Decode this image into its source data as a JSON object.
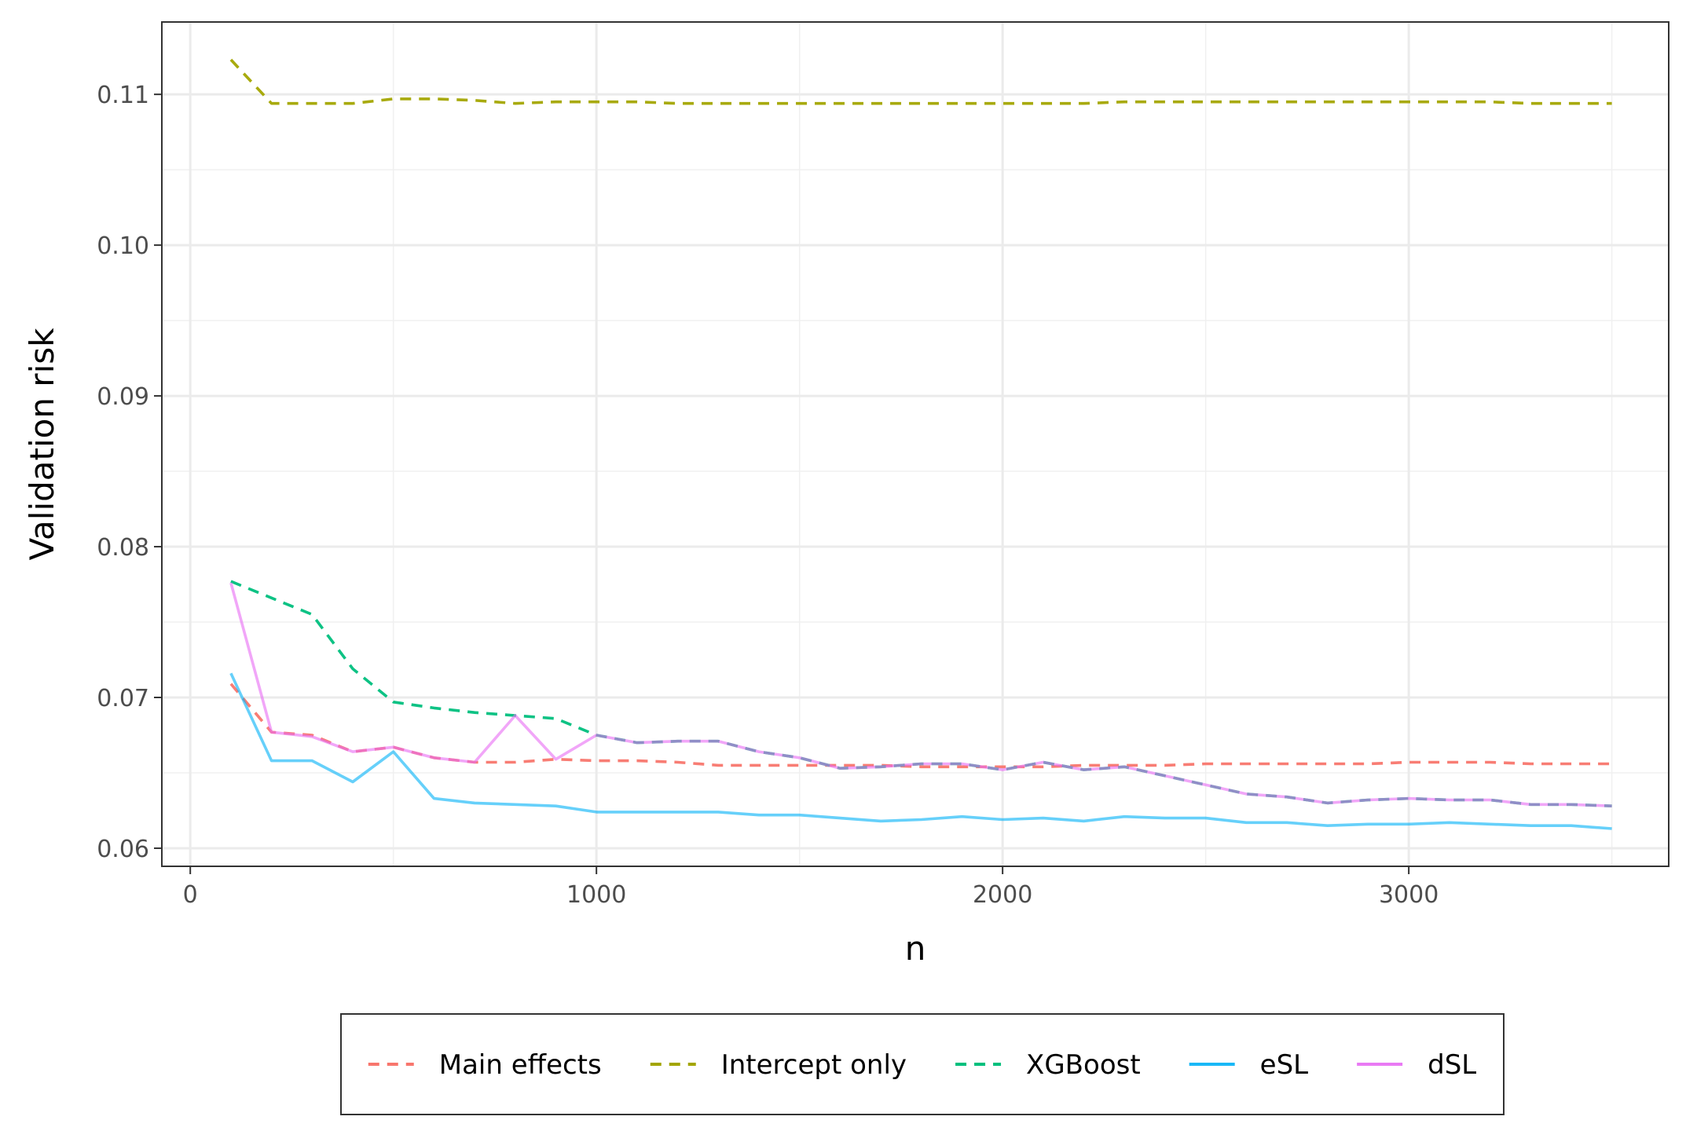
{
  "chart_data": {
    "type": "line",
    "title": "",
    "xlabel": "n",
    "ylabel": "Validation risk",
    "xlim": [
      -70,
      3640
    ],
    "ylim": [
      0.0588,
      0.1148
    ],
    "x_ticks": [
      0,
      1000,
      2000,
      3000
    ],
    "x_tick_labels": [
      "0",
      "1000",
      "2000",
      "3000"
    ],
    "y_ticks": [
      0.06,
      0.07,
      0.08,
      0.09,
      0.1,
      0.11
    ],
    "y_tick_labels": [
      "0.06",
      "0.07",
      "0.08",
      "0.09",
      "0.10",
      "0.11"
    ],
    "grid": true,
    "legend_position": "bottom",
    "x": [
      100,
      200,
      300,
      400,
      500,
      600,
      700,
      800,
      900,
      1000,
      1100,
      1200,
      1300,
      1400,
      1500,
      1600,
      1700,
      1800,
      1900,
      2000,
      2100,
      2200,
      2300,
      2400,
      2500,
      2600,
      2700,
      2800,
      2900,
      3000,
      3100,
      3200,
      3300,
      3400,
      3500
    ],
    "series": [
      {
        "name": "Main effects",
        "color": "#F8766D",
        "dash": "dashed",
        "values": [
          0.0709,
          0.0677,
          0.0675,
          0.0664,
          0.0667,
          0.066,
          0.0657,
          0.0657,
          0.0659,
          0.0658,
          0.0658,
          0.0657,
          0.0655,
          0.0655,
          0.0655,
          0.0655,
          0.0655,
          0.0654,
          0.0654,
          0.0654,
          0.0654,
          0.0655,
          0.0655,
          0.0655,
          0.0656,
          0.0656,
          0.0656,
          0.0656,
          0.0656,
          0.0657,
          0.0657,
          0.0657,
          0.0656,
          0.0656,
          0.0656
        ]
      },
      {
        "name": "Intercept only",
        "color": "#A3A500",
        "dash": "dashed",
        "values": [
          0.1123,
          0.1094,
          0.1094,
          0.1094,
          0.1097,
          0.1097,
          0.1096,
          0.1094,
          0.1095,
          0.1095,
          0.1095,
          0.1094,
          0.1094,
          0.1094,
          0.1094,
          0.1094,
          0.1094,
          0.1094,
          0.1094,
          0.1094,
          0.1094,
          0.1094,
          0.1095,
          0.1095,
          0.1095,
          0.1095,
          0.1095,
          0.1095,
          0.1095,
          0.1095,
          0.1095,
          0.1095,
          0.1094,
          0.1094,
          0.1094
        ]
      },
      {
        "name": "XGBoost",
        "color": "#00BF7D",
        "dash": "dashed",
        "values": [
          0.0777,
          0.0766,
          0.0755,
          0.0719,
          0.0697,
          0.0693,
          0.069,
          0.0688,
          0.0686,
          0.0675,
          0.067,
          0.0671,
          0.0671,
          0.0664,
          0.066,
          0.0653,
          0.0654,
          0.0656,
          0.0656,
          0.0652,
          0.0657,
          0.0652,
          0.0654,
          0.0648,
          0.0642,
          0.0636,
          0.0634,
          0.063,
          0.0632,
          0.0633,
          0.0632,
          0.0632,
          0.0629,
          0.0629,
          0.0628
        ]
      },
      {
        "name": "eSL",
        "color": "#00B0F6",
        "dash": "solid",
        "values": [
          0.0716,
          0.0658,
          0.0658,
          0.0644,
          0.0664,
          0.0633,
          0.063,
          0.0629,
          0.0628,
          0.0624,
          0.0624,
          0.0624,
          0.0624,
          0.0622,
          0.0622,
          0.062,
          0.0618,
          0.0619,
          0.0621,
          0.0619,
          0.062,
          0.0618,
          0.0621,
          0.062,
          0.062,
          0.0617,
          0.0617,
          0.0615,
          0.0616,
          0.0616,
          0.0617,
          0.0616,
          0.0615,
          0.0615,
          0.0613
        ]
      },
      {
        "name": "dSL",
        "color": "#E76BF3",
        "dash": "solid",
        "values": [
          0.0776,
          0.0677,
          0.0674,
          0.0664,
          0.0667,
          0.066,
          0.0657,
          0.0688,
          0.0659,
          0.0675,
          0.067,
          0.0671,
          0.0671,
          0.0664,
          0.066,
          0.0653,
          0.0654,
          0.0656,
          0.0656,
          0.0652,
          0.0657,
          0.0652,
          0.0654,
          0.0648,
          0.0642,
          0.0636,
          0.0634,
          0.063,
          0.0632,
          0.0633,
          0.0632,
          0.0632,
          0.0629,
          0.0629,
          0.0628
        ]
      }
    ]
  }
}
